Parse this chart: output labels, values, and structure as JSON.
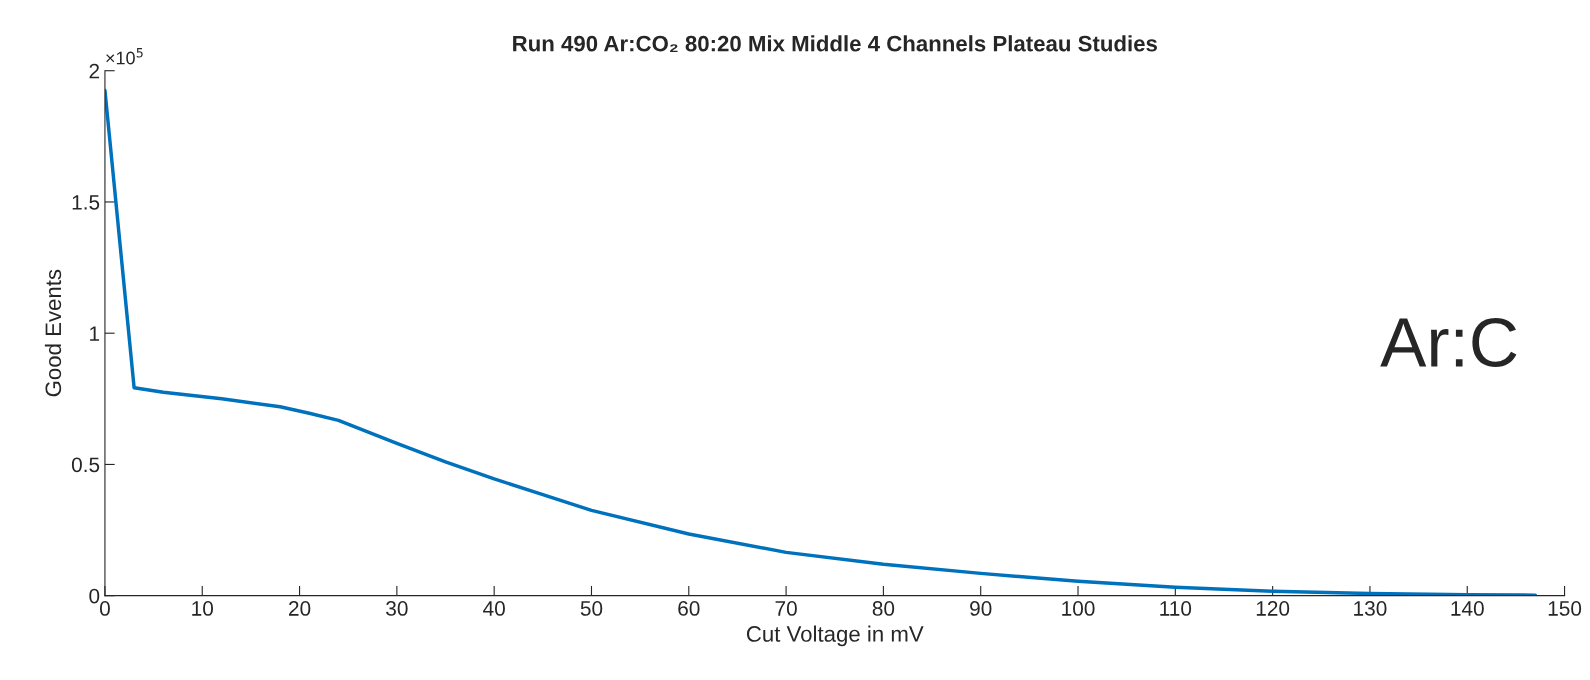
{
  "chart_data": {
    "type": "line",
    "title": "Run 490 Ar:CO₂ 80:20 Mix Middle 4 Channels Plateau Studies",
    "xlabel": "Cut Voltage in mV",
    "ylabel": "Good Events",
    "x": [
      0,
      3,
      6,
      12,
      18,
      21,
      24,
      30,
      35,
      40,
      45,
      50,
      60,
      70,
      80,
      90,
      100,
      110,
      120,
      130,
      140,
      147
    ],
    "series": [
      {
        "color": "#0072bd",
        "values": [
          1.925,
          0.792,
          0.775,
          0.75,
          0.72,
          0.695,
          0.668,
          0.58,
          0.51,
          0.445,
          0.385,
          0.325,
          0.235,
          0.165,
          0.12,
          0.085,
          0.055,
          0.032,
          0.017,
          0.008,
          0.004,
          0.002
        ]
      }
    ],
    "xlim": [
      0,
      150
    ],
    "xticks": [
      0,
      10,
      20,
      30,
      40,
      50,
      60,
      70,
      80,
      90,
      100,
      110,
      120,
      130,
      140,
      150
    ],
    "ylim": [
      0,
      2
    ],
    "yticks": [
      0,
      0.5,
      1,
      1.5,
      2
    ],
    "grid": false,
    "marker": "none",
    "line_style": "solid",
    "annotations": [
      "×10$^{5}$",
      "Ar:C"
    ]
  }
}
